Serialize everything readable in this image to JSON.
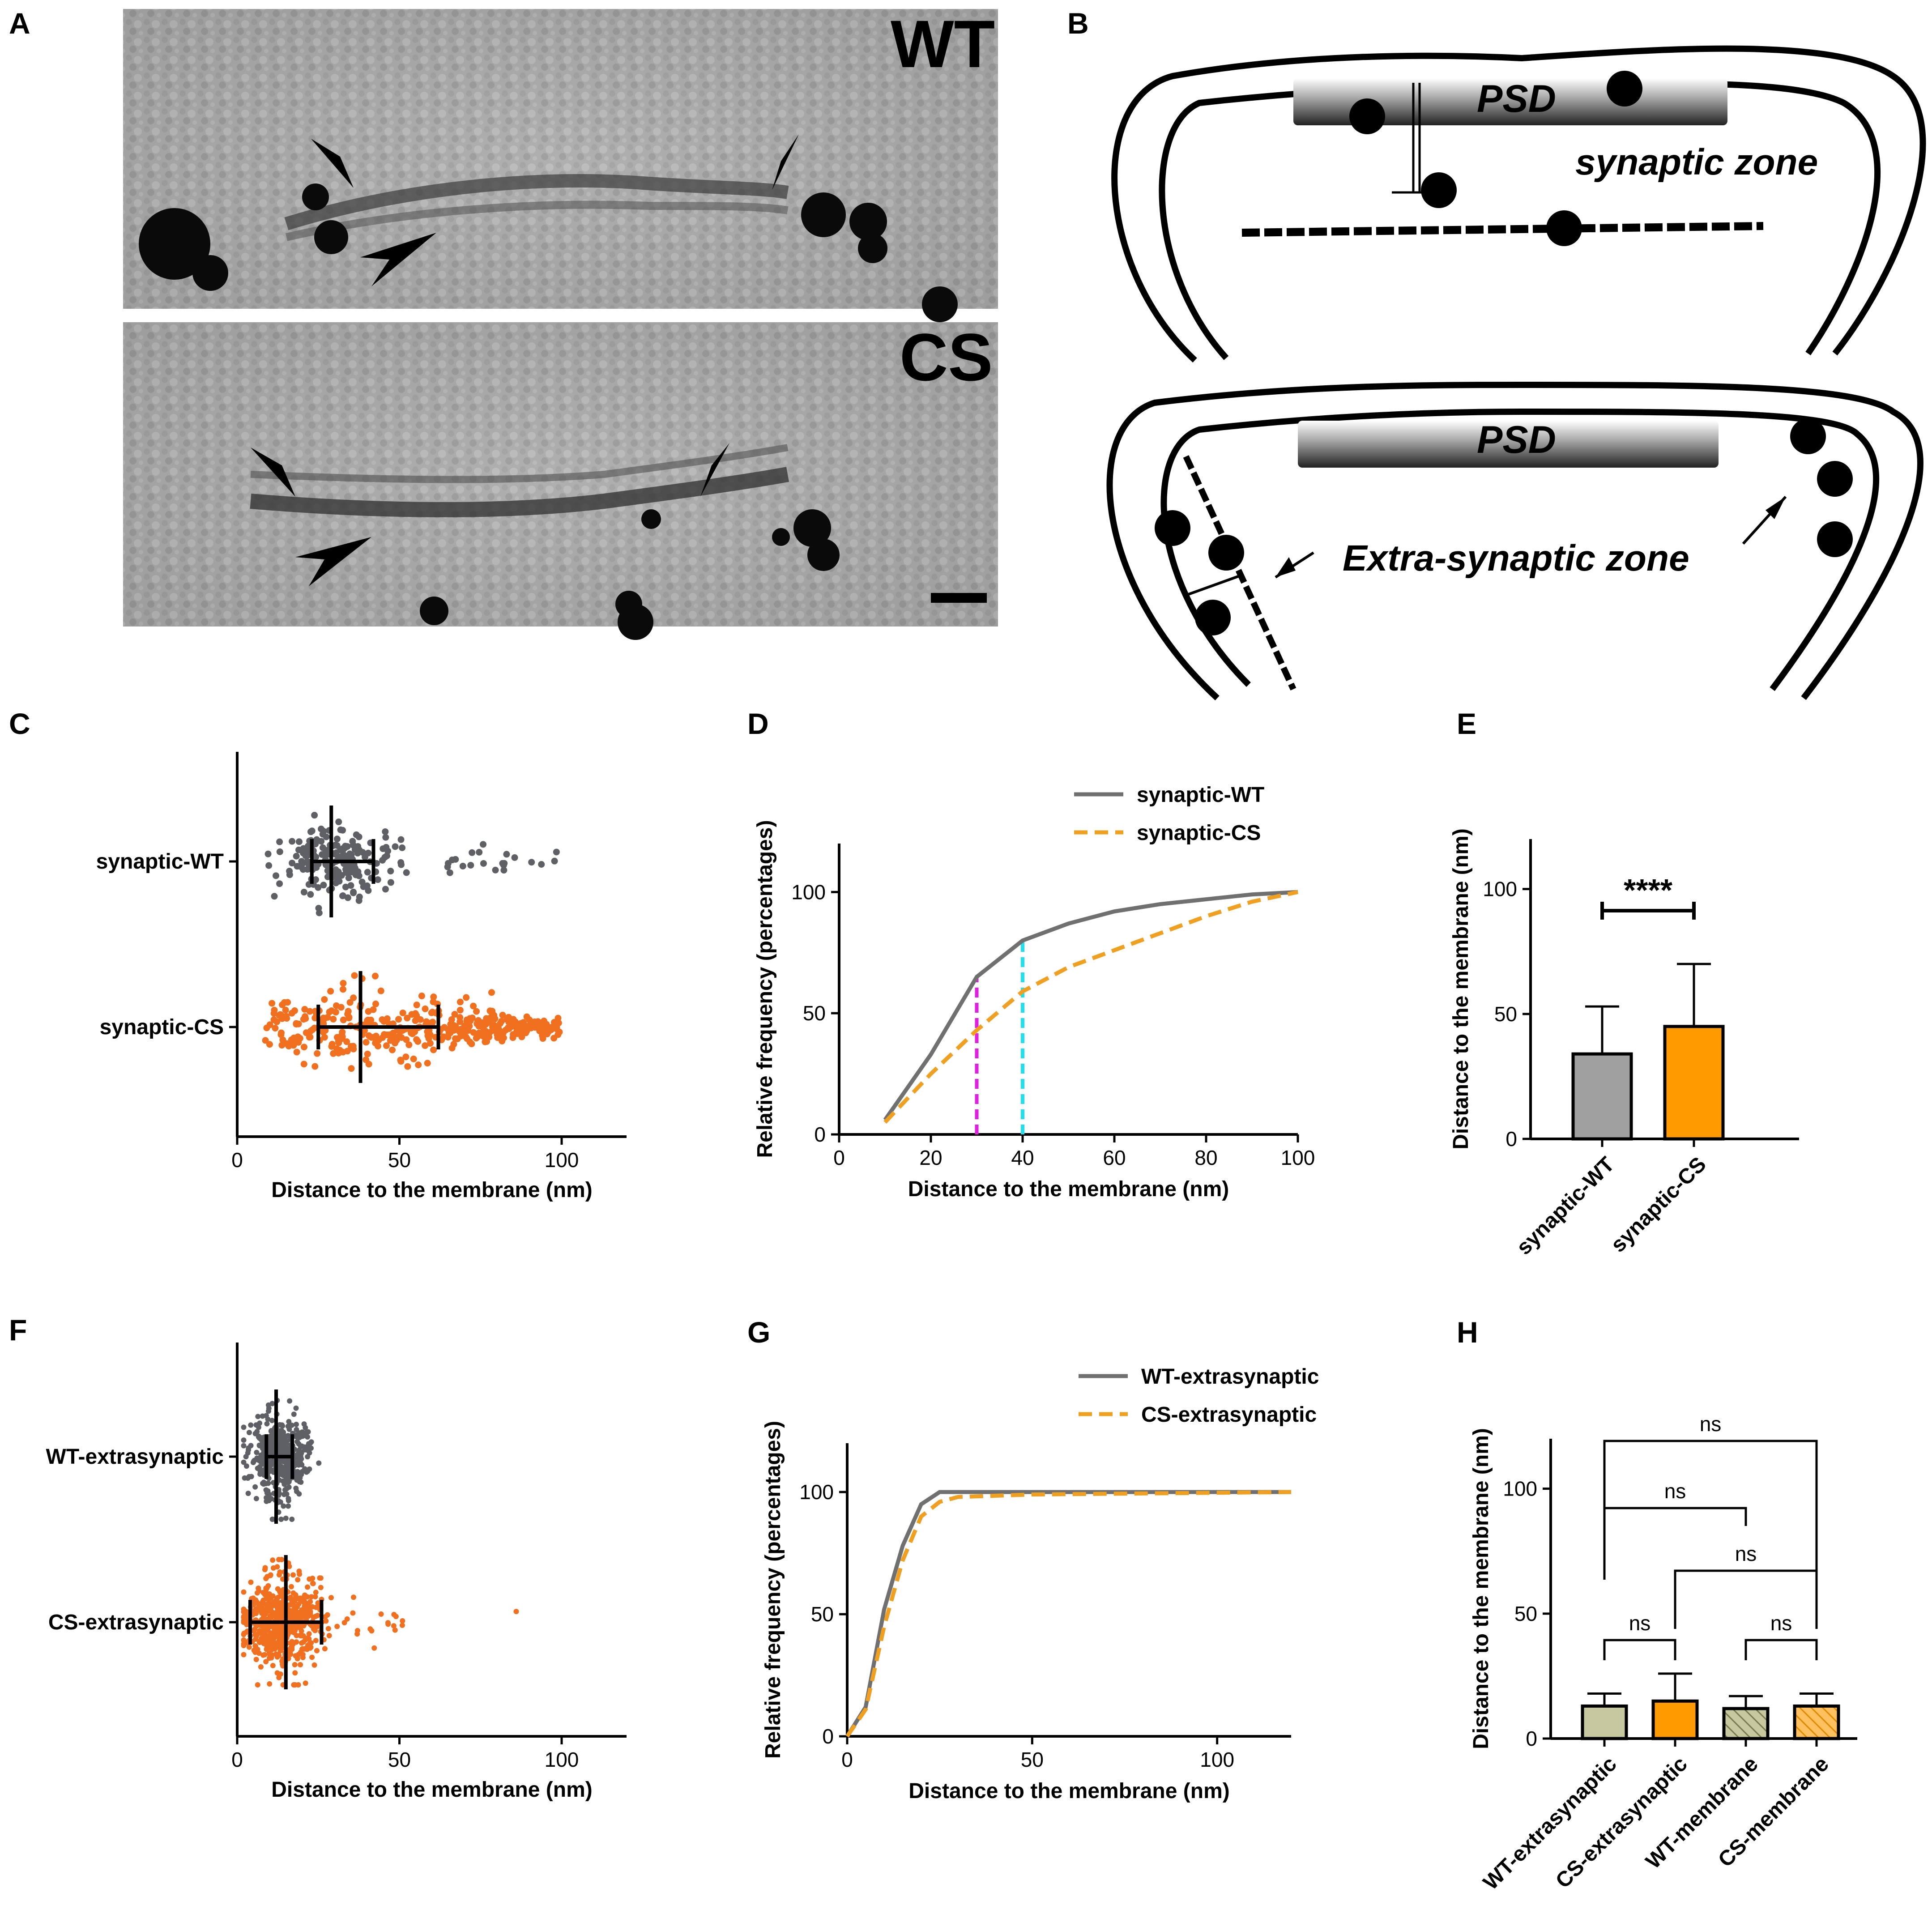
{
  "panels": {
    "A": {
      "letter": "A",
      "image_labels": [
        "WT",
        "CS"
      ]
    },
    "B": {
      "letter": "B",
      "psd_label": "PSD",
      "synaptic_label": "synaptic zone",
      "extra_label": "Extra-synaptic zone"
    },
    "C": {
      "letter": "C"
    },
    "D": {
      "letter": "D"
    },
    "E": {
      "letter": "E"
    },
    "F": {
      "letter": "F"
    },
    "G": {
      "letter": "G"
    },
    "H": {
      "letter": "H"
    }
  },
  "colors": {
    "wt_gray": "#5f5f66",
    "cs_orange": "#f07020",
    "line_gray": "#707070",
    "line_orange": "#f0a020",
    "bar_gray": "#a0a0a0",
    "bar_orange": "#ff9a00",
    "bar_olive": "#c8c8a0",
    "magenta": "#e020e0",
    "cyan": "#20e0f0"
  },
  "chart_data": [
    {
      "panel": "C",
      "type": "scatter",
      "xlabel": "Distance to the membrane (nm)",
      "xlim": [
        0,
        120
      ],
      "xticks": [
        0,
        50,
        100
      ],
      "categories": [
        "synaptic-WT",
        "synaptic-CS"
      ],
      "summary": [
        {
          "name": "synaptic-WT",
          "median": 29,
          "q1": 23,
          "q3": 42
        },
        {
          "name": "synaptic-CS",
          "median": 38,
          "q1": 25,
          "q3": 62
        }
      ]
    },
    {
      "panel": "D",
      "type": "line",
      "xlabel": "Distance to the membrane (nm)",
      "ylabel": "Relative frequency (percentages)",
      "xlim": [
        0,
        100
      ],
      "ylim": [
        0,
        120
      ],
      "xticks": [
        0,
        20,
        40,
        60,
        80,
        100
      ],
      "yticks": [
        0,
        50,
        100
      ],
      "series": [
        {
          "name": "synaptic-WT",
          "x": [
            10,
            20,
            30,
            40,
            50,
            60,
            70,
            80,
            90,
            100
          ],
          "y": [
            6,
            33,
            65,
            80,
            87,
            92,
            95,
            97,
            99,
            100
          ]
        },
        {
          "name": "synaptic-CS",
          "x": [
            10,
            20,
            30,
            40,
            50,
            60,
            70,
            80,
            90,
            100
          ],
          "y": [
            5,
            25,
            43,
            59,
            69,
            76,
            83,
            90,
            96,
            100
          ]
        }
      ],
      "markers": [
        {
          "x": 30,
          "to": 65
        },
        {
          "x": 40,
          "to": 80
        }
      ]
    },
    {
      "panel": "E",
      "type": "bar",
      "ylabel": "Distance to the membrane (nm)",
      "ylim": [
        0,
        120
      ],
      "yticks": [
        0,
        50,
        100
      ],
      "categories": [
        "synaptic-WT",
        "synaptic-CS"
      ],
      "values": [
        34,
        45
      ],
      "errors": [
        19,
        25
      ],
      "significance": "****"
    },
    {
      "panel": "F",
      "type": "scatter",
      "xlabel": "Distance to the membrane (nm)",
      "xlim": [
        0,
        120
      ],
      "xticks": [
        0,
        50,
        100
      ],
      "categories": [
        "WT-extrasynaptic",
        "CS-extrasynaptic"
      ],
      "summary": [
        {
          "name": "WT-extrasynaptic",
          "median": 12,
          "q1": 9,
          "q3": 17
        },
        {
          "name": "CS-extrasynaptic",
          "median": 15,
          "q1": 4,
          "q3": 26
        }
      ]
    },
    {
      "panel": "G",
      "type": "line",
      "xlabel": "Distance to the membrane (nm)",
      "ylabel": "Relative frequency (percentages)",
      "xlim": [
        0,
        120
      ],
      "ylim": [
        0,
        120
      ],
      "xticks": [
        0,
        50,
        100
      ],
      "yticks": [
        0,
        50,
        100
      ],
      "series": [
        {
          "name": "WT-extrasynaptic",
          "x": [
            0,
            5,
            10,
            15,
            20,
            25,
            30,
            50,
            120
          ],
          "y": [
            0,
            12,
            52,
            78,
            95,
            100,
            100,
            100,
            100
          ]
        },
        {
          "name": "CS-extrasynaptic",
          "x": [
            0,
            5,
            10,
            15,
            20,
            25,
            30,
            50,
            120
          ],
          "y": [
            0,
            11,
            45,
            72,
            90,
            96,
            98,
            99,
            100
          ]
        }
      ]
    },
    {
      "panel": "H",
      "type": "bar",
      "ylabel": "Distance to the membrane (nm)",
      "ylim": [
        0,
        120
      ],
      "yticks": [
        0,
        50,
        100
      ],
      "categories": [
        "WT-extrasynaptic",
        "CS-extrasynaptic",
        "WT-membrane",
        "CS-membrane"
      ],
      "values": [
        13,
        15,
        12,
        13
      ],
      "errors": [
        5,
        11,
        5,
        5
      ],
      "significance": [
        {
          "from": 0,
          "to": 1,
          "label": "ns"
        },
        {
          "from": 2,
          "to": 3,
          "label": "ns"
        },
        {
          "from": 1,
          "to": 3,
          "label": "ns"
        },
        {
          "from": 0,
          "to": 2,
          "label": "ns"
        },
        {
          "from": 0,
          "to": 3,
          "label": "ns"
        }
      ]
    }
  ]
}
